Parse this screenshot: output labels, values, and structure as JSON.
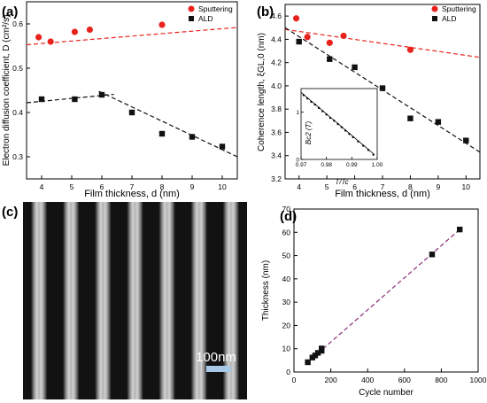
{
  "panels": [
    {
      "label": "(a)",
      "chart_data": {
        "type": "scatter",
        "xlabel": "Film thickness, d (nm)",
        "ylabel": "Electron diffusion coefficient, D (cm²/s)",
        "xlim": [
          3.5,
          10.5
        ],
        "ylim": [
          0.25,
          0.65
        ],
        "xticks": [
          4,
          5,
          6,
          7,
          8,
          9,
          10
        ],
        "yticks": [
          0.3,
          0.4,
          0.5,
          0.6
        ],
        "ytick_labels": [
          "0.3",
          "0.4",
          "0.5",
          "0.6"
        ],
        "grid": false,
        "legend_position": "top-right",
        "series": [
          {
            "name": "Sputtering",
            "marker": "circle",
            "color": "#e8221c",
            "x": [
              3.9,
              4.3,
              5.1,
              5.6,
              8.0
            ],
            "y": [
              0.57,
              0.56,
              0.582,
              0.587,
              0.598
            ]
          },
          {
            "name": "ALD",
            "marker": "square",
            "color": "#111111",
            "x": [
              4.0,
              5.1,
              6.0,
              7.0,
              8.0,
              9.0,
              10.0
            ],
            "y": [
              0.43,
              0.43,
              0.44,
              0.4,
              0.352,
              0.345,
              0.323
            ]
          }
        ],
        "fit_lines": [
          {
            "color": "#e8221c",
            "points": [
              [
                3.5,
                0.553
              ],
              [
                10.5,
                0.592
              ]
            ]
          },
          {
            "color": "#111111",
            "points": [
              [
                3.5,
                0.422
              ],
              [
                6.4,
                0.441
              ]
            ]
          },
          {
            "color": "#111111",
            "points": [
              [
                5.9,
                0.448
              ],
              [
                10.5,
                0.3
              ]
            ]
          }
        ]
      }
    },
    {
      "label": "(b)",
      "chart_data": {
        "type": "scatter",
        "xlabel": "Film thickness, d (nm)",
        "ylabel": "Coherence length, ξGL,0 (nm)",
        "xlim": [
          3.5,
          10.5
        ],
        "ylim": [
          3.2,
          4.7
        ],
        "xticks": [
          4,
          5,
          6,
          7,
          8,
          9,
          10
        ],
        "yticks": [
          3.2,
          3.4,
          3.6,
          3.8,
          4.0,
          4.2,
          4.4,
          4.6
        ],
        "ytick_labels": [
          "3.2",
          "3.4",
          "3.6",
          "3.8",
          "4.0",
          "4.2",
          "4.4",
          "4.6"
        ],
        "grid": false,
        "legend_position": "top-right",
        "series": [
          {
            "name": "Sputtering",
            "marker": "circle",
            "color": "#e8221c",
            "x": [
              3.9,
              4.3,
              5.1,
              5.6,
              8.0
            ],
            "y": [
              4.58,
              4.42,
              4.37,
              4.43,
              4.31
            ]
          },
          {
            "name": "ALD",
            "marker": "square",
            "color": "#111111",
            "x": [
              4.0,
              5.1,
              6.0,
              7.0,
              8.0,
              9.0,
              10.0
            ],
            "y": [
              4.38,
              4.23,
              4.16,
              3.98,
              3.72,
              3.69,
              3.53
            ]
          }
        ],
        "fit_lines": [
          {
            "color": "#e8221c",
            "points": [
              [
                3.5,
                4.485
              ],
              [
                10.5,
                4.245
              ]
            ]
          },
          {
            "color": "#111111",
            "points": [
              [
                3.5,
                4.5
              ],
              [
                10.5,
                3.43
              ]
            ]
          }
        ],
        "inset": {
          "xlabel": "T/Tc",
          "ylabel": "Bc2 (T)",
          "xlim": [
            0.97,
            1.0
          ],
          "ylim": [
            0,
            1.5
          ],
          "xticks": [
            0.97,
            0.98,
            0.99,
            1.0
          ],
          "xtick_labels": [
            "0.97",
            "0.98",
            "0.99",
            "1.00"
          ],
          "yticks": [
            0,
            1
          ],
          "ytick_labels": [
            "0",
            "1"
          ],
          "points": {
            "x": [
              0.971,
              0.9725,
              0.974,
              0.9755,
              0.977,
              0.9785,
              0.98,
              0.9815,
              0.983,
              0.9845,
              0.986,
              0.9875,
              0.989,
              0.9905,
              0.9925,
              0.9945,
              0.9965,
              0.9985
            ],
            "y": [
              1.36,
              1.29,
              1.22,
              1.16,
              1.09,
              1.02,
              0.95,
              0.88,
              0.82,
              0.75,
              0.68,
              0.61,
              0.54,
              0.47,
              0.38,
              0.29,
              0.2,
              0.1
            ]
          },
          "fit_line": [
            [
              0.97,
              1.42
            ],
            [
              0.9985,
              0.12
            ]
          ]
        }
      }
    },
    {
      "label": "(c)",
      "scale_bar_label": "100nm",
      "stripe_count": 7
    },
    {
      "label": "(d)",
      "chart_data": {
        "type": "scatter",
        "xlabel": "Cycle number",
        "ylabel": "Thickness (nm)",
        "xlim": [
          0,
          1000
        ],
        "ylim": [
          0,
          70
        ],
        "xticks": [
          0,
          200,
          400,
          600,
          800,
          1000
        ],
        "yticks": [
          0,
          10,
          20,
          30,
          40,
          50,
          60,
          70
        ],
        "grid": false,
        "series": [
          {
            "marker": "square",
            "color": "#111111",
            "x": [
              75,
              100,
              115,
              130,
              150,
              150,
              750,
              900
            ],
            "y": [
              4.2,
              6.2,
              7.1,
              8.2,
              9.1,
              10.1,
              50.5,
              61.2
            ]
          }
        ],
        "fit_lines": [
          {
            "color": "#8a2a7a",
            "points": [
              [
                70,
                3.9
              ],
              [
                900,
                61.2
              ]
            ]
          }
        ]
      }
    }
  ]
}
